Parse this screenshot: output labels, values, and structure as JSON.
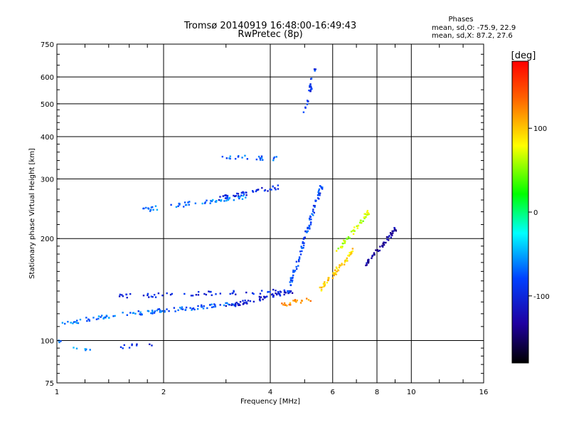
{
  "chart_data": {
    "type": "scatter",
    "title": "Tromsø 20140919 16:48:00-16:49:43",
    "subtitle": "RwPretec (8p)",
    "xlabel": "Frequency [MHz]",
    "ylabel": "Stationary phase Virtual Height [km]",
    "x_scale": "log",
    "y_scale": "log",
    "xlim": [
      1,
      16
    ],
    "ylim": [
      75,
      750
    ],
    "x_ticks": [
      1,
      2,
      4,
      6,
      8,
      10,
      16
    ],
    "x_tick_labels": [
      "1",
      "2",
      "4",
      "6",
      "8",
      "10",
      "16"
    ],
    "y_ticks": [
      75,
      100,
      200,
      300,
      400,
      500,
      600,
      750
    ],
    "y_tick_labels": [
      "75",
      "100",
      "200",
      "300",
      "400",
      "500",
      "600",
      "750"
    ],
    "grid": true,
    "phases_box": {
      "heading": "Phases",
      "line1": "mean, sd,O: -75.9, 22.9",
      "line2": "mean, sd,X:  87.2, 27.6"
    },
    "colorbar": {
      "label": "[deg]",
      "range": [
        -180,
        180
      ],
      "ticks": [
        100,
        0,
        -100
      ],
      "tick_labels": [
        "100",
        "0",
        "-100"
      ],
      "colormap": "rainbow"
    },
    "traces": [
      {
        "f_start": 1.0,
        "f_end": 1.6,
        "h_start": 112,
        "h_end": 120,
        "phase": -65,
        "count": 34
      },
      {
        "f_start": 1.6,
        "f_end": 3.2,
        "h_start": 120,
        "h_end": 128,
        "phase": -72,
        "count": 70
      },
      {
        "f_start": 3.0,
        "f_end": 4.6,
        "h_start": 126,
        "h_end": 140,
        "phase": -110,
        "count": 60
      },
      {
        "f_start": 1.5,
        "f_end": 4.5,
        "h_start": 135,
        "h_end": 140,
        "phase": -95,
        "count": 55
      },
      {
        "f_start": 4.5,
        "f_end": 5.6,
        "h_start": 140,
        "h_end": 290,
        "phase": -80,
        "count": 90
      },
      {
        "f_start": 1.7,
        "f_end": 3.4,
        "h_start": 242,
        "h_end": 266,
        "phase": -62,
        "count": 55
      },
      {
        "f_start": 2.8,
        "f_end": 4.3,
        "h_start": 262,
        "h_end": 285,
        "phase": -95,
        "count": 45
      },
      {
        "f_start": 2.9,
        "f_end": 4.2,
        "h_start": 348,
        "h_end": 345,
        "phase": -70,
        "count": 22
      },
      {
        "f_start": 5.0,
        "f_end": 5.35,
        "h_start": 470,
        "h_end": 640,
        "phase": -90,
        "count": 26
      },
      {
        "f_start": 4.3,
        "f_end": 5.2,
        "h_start": 128,
        "h_end": 132,
        "phase": 120,
        "count": 20
      },
      {
        "f_start": 5.5,
        "f_end": 6.9,
        "h_start": 140,
        "h_end": 185,
        "phase": 95,
        "count": 60
      },
      {
        "f_start": 6.2,
        "f_end": 7.6,
        "h_start": 185,
        "h_end": 240,
        "phase": 65,
        "count": 45
      },
      {
        "f_start": 7.4,
        "f_end": 9.1,
        "h_start": 168,
        "h_end": 215,
        "phase": -130,
        "count": 50
      },
      {
        "f_start": 1.0,
        "f_end": 1.25,
        "h_start": 100,
        "h_end": 93,
        "phase": -60,
        "count": 10
      },
      {
        "f_start": 1.5,
        "f_end": 1.9,
        "h_start": 96,
        "h_end": 98,
        "phase": -100,
        "count": 10
      }
    ]
  }
}
